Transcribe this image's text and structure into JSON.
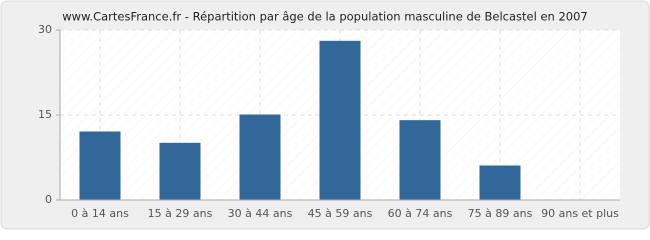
{
  "chart_data": {
    "type": "bar",
    "title": "www.CartesFrance.fr - Répartition par âge de la population masculine de Belcastel en 2007",
    "categories": [
      "0 à 14 ans",
      "15 à 29 ans",
      "30 à 44 ans",
      "45 à 59 ans",
      "60 à 74 ans",
      "75 à 89 ans",
      "90 ans et plus"
    ],
    "values": [
      12,
      10,
      15,
      28,
      14,
      6,
      0
    ],
    "color": "#336699",
    "ylim": [
      0,
      30
    ],
    "yticks": [
      0,
      15,
      30
    ],
    "grid": true
  }
}
